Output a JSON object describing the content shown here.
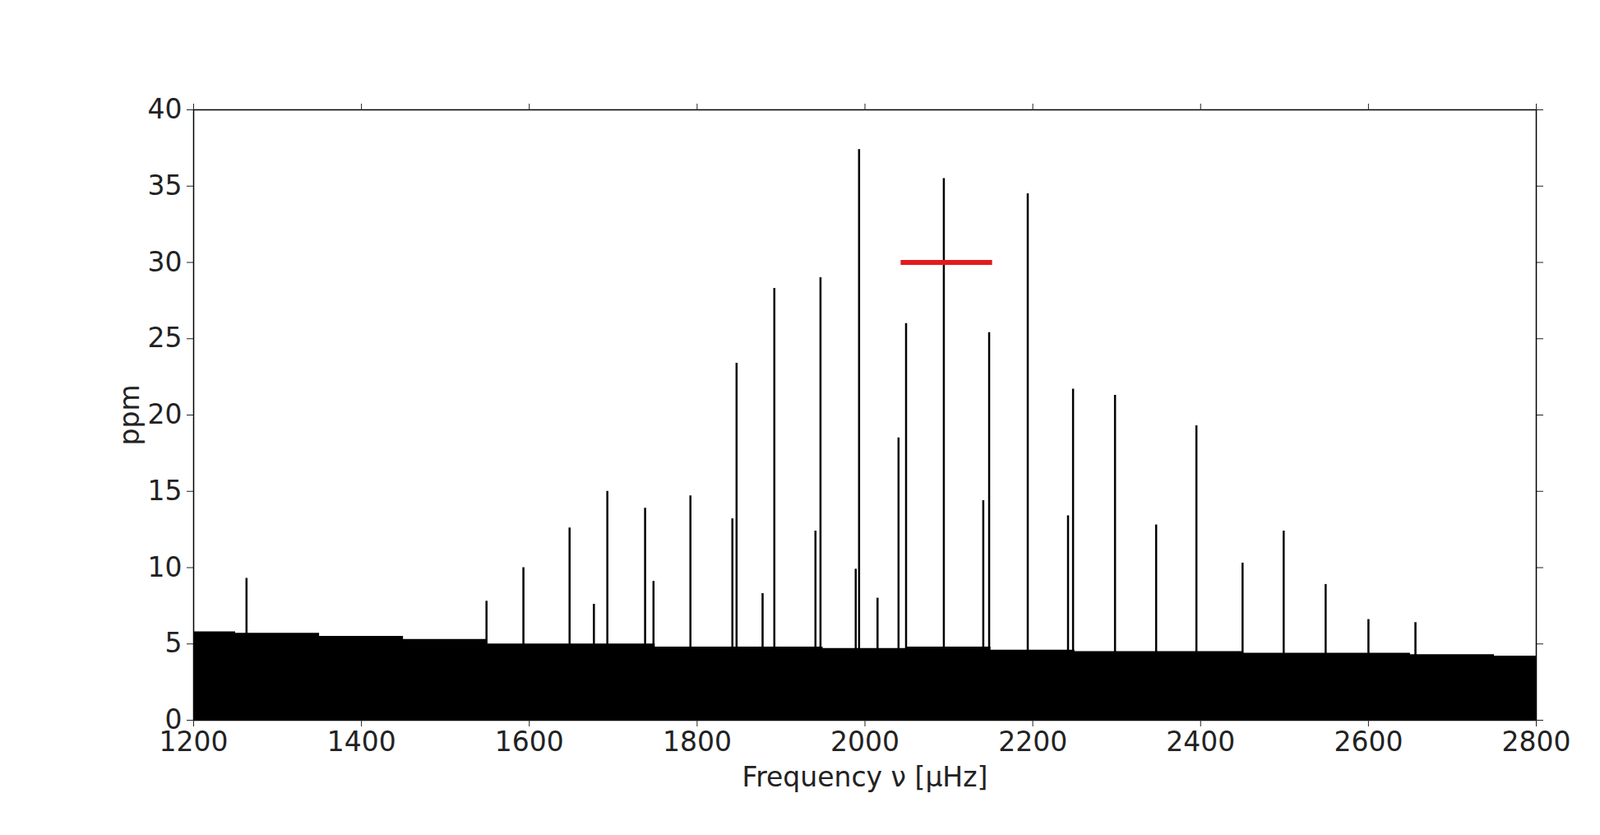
{
  "chart_data": {
    "type": "line",
    "x_label": "Frequency ν [μHz]",
    "y_label": "ppm",
    "xlim": [
      1200,
      2800
    ],
    "xticks": [
      1200,
      1400,
      1600,
      1800,
      2000,
      2200,
      2400,
      2600,
      2800
    ],
    "ylim": [
      0,
      40
    ],
    "yticks": [
      0,
      5,
      10,
      15,
      20,
      25,
      30,
      35,
      40
    ],
    "grid": false,
    "color": "#000000",
    "peaks": {
      "x": [
        1263,
        1549,
        1593,
        1648,
        1677,
        1693,
        1738,
        1748,
        1792,
        1842,
        1847,
        1878,
        1892,
        1941,
        1947,
        1989,
        1993,
        2015,
        2040,
        2049,
        2094,
        2141,
        2148,
        2194,
        2242,
        2248,
        2298,
        2347,
        2395,
        2450,
        2499,
        2549,
        2600,
        2656
      ],
      "values": [
        9.3,
        7.8,
        10.0,
        12.6,
        7.6,
        15.0,
        13.9,
        9.1,
        14.7,
        13.2,
        23.4,
        8.3,
        28.3,
        12.4,
        29.0,
        9.9,
        37.4,
        8.0,
        18.5,
        26.0,
        35.5,
        14.4,
        25.4,
        34.5,
        13.4,
        21.7,
        21.3,
        12.8,
        19.3,
        10.3,
        12.4,
        8.9,
        6.6,
        6.4
      ]
    },
    "background": {
      "x": [
        1200,
        1300,
        1400,
        1500,
        1600,
        1700,
        1800,
        1900,
        2000,
        2100,
        2200,
        2300,
        2400,
        2500,
        2600,
        2700,
        2800
      ],
      "values": [
        5.8,
        5.7,
        5.5,
        5.3,
        5.0,
        5.0,
        4.8,
        4.8,
        4.7,
        4.8,
        4.6,
        4.5,
        4.5,
        4.4,
        4.4,
        4.3,
        4.2
      ]
    },
    "marker_segment": {
      "x": [
        2043,
        2152
      ],
      "y": 30,
      "color": "#e31a1c"
    }
  }
}
